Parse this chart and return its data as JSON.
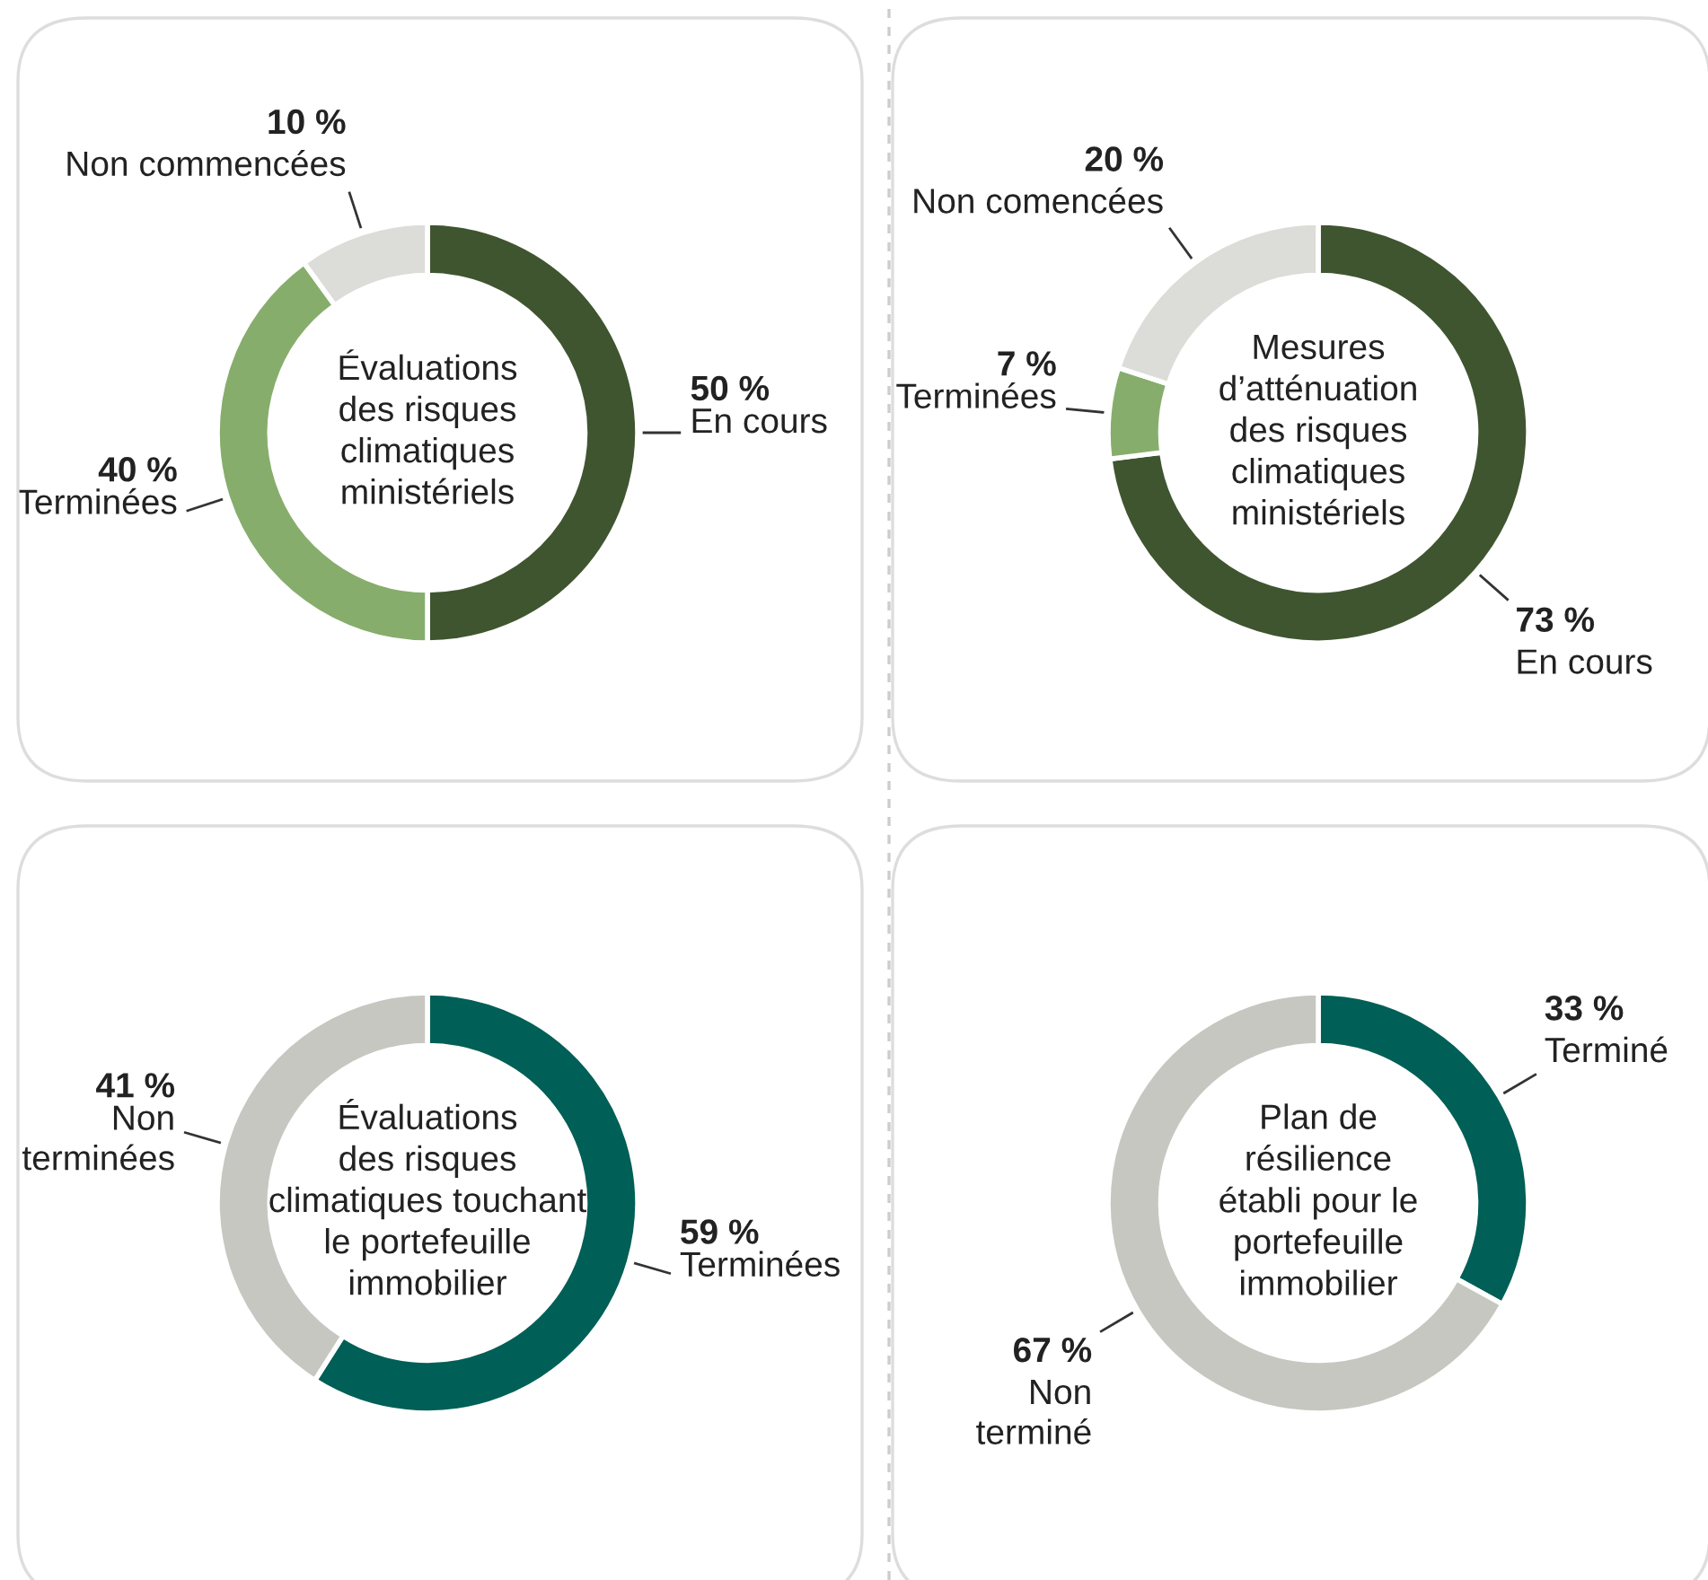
{
  "chart_data": [
    {
      "type": "donut",
      "title": "Évaluations\ndes risques\nclimatiques\nministériels",
      "categories": [
        "En cours",
        "Terminées",
        "Non commencées"
      ],
      "values": [
        50,
        40,
        10
      ],
      "colors": [
        "#3f5530",
        "#87ad6c",
        "#dcdcd8"
      ],
      "value_labels": [
        "50 %",
        "40 %",
        "10 %"
      ]
    },
    {
      "type": "donut",
      "title": "Mesures\nd’atténuation\ndes risques\nclimatiques\nministériels",
      "categories": [
        "En cours",
        "Terminées",
        "Non comencées"
      ],
      "values": [
        73,
        7,
        20
      ],
      "colors": [
        "#3f5530",
        "#87ad6c",
        "#dcdcd8"
      ],
      "value_labels": [
        "73 %",
        "7 %",
        "20 %"
      ]
    },
    {
      "type": "donut",
      "title": "Évaluations\ndes risques\nclimatiques touchant\nle portefeuille\nimmobilier",
      "categories": [
        "Terminées",
        "Non\nterminées"
      ],
      "values": [
        59,
        41
      ],
      "colors": [
        "#005f56",
        "#c6c7c1"
      ],
      "value_labels": [
        "59 %",
        "41 %"
      ]
    },
    {
      "type": "donut",
      "title": "Plan de\nrésilience\nétabli pour le\nportefeuille\nimmobilier",
      "categories": [
        "Terminé",
        "Non\nterminé"
      ],
      "values": [
        33,
        67
      ],
      "colors": [
        "#005f56",
        "#c6c7c1"
      ],
      "value_labels": [
        "33 %",
        "67 %"
      ]
    }
  ]
}
